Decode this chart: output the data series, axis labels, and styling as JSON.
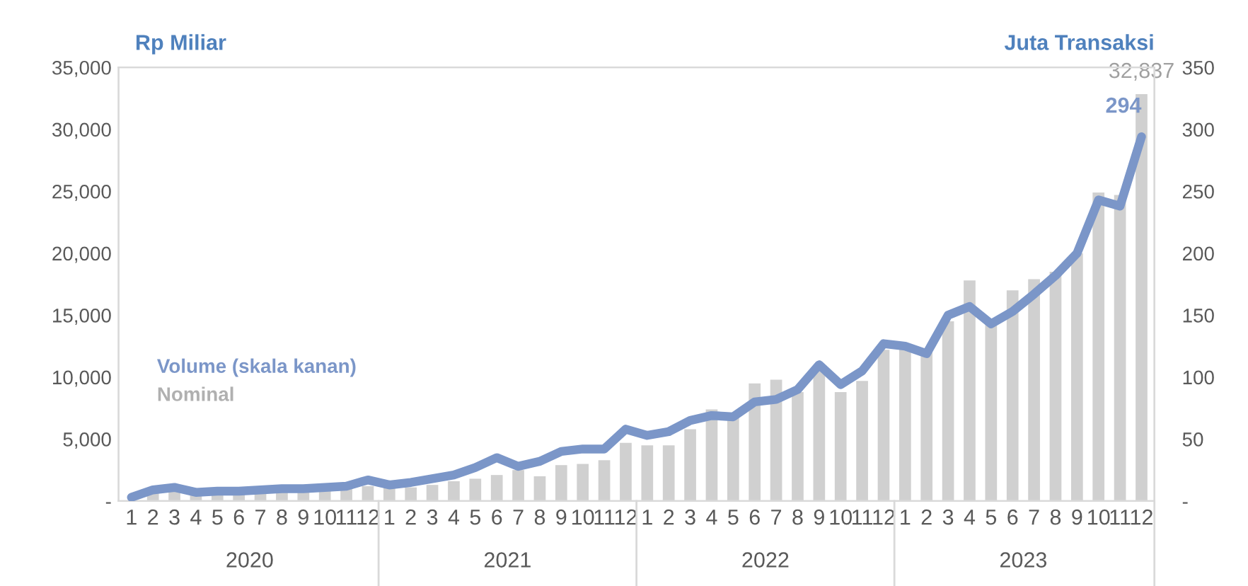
{
  "chart_data": {
    "type": "bar",
    "ylabel": "Rp Miliar",
    "y2label": "Juta Transaksi",
    "categories": [
      "1",
      "2",
      "3",
      "4",
      "5",
      "6",
      "7",
      "8",
      "9",
      "10",
      "11",
      "12",
      "1",
      "2",
      "3",
      "4",
      "5",
      "6",
      "7",
      "8",
      "9",
      "10",
      "11",
      "12",
      "1",
      "2",
      "3",
      "4",
      "5",
      "6",
      "7",
      "8",
      "9",
      "10",
      "11",
      "12",
      "1",
      "2",
      "3",
      "4",
      "5",
      "6",
      "7",
      "8",
      "9",
      "10",
      "11",
      "12"
    ],
    "series": [
      {
        "name": "Nominal",
        "color": "#d0d0d0",
        "values": [
          null,
          700,
          900,
          500,
          600,
          700,
          800,
          900,
          900,
          1000,
          1100,
          1200,
          1200,
          1100,
          1300,
          1600,
          1800,
          2100,
          2500,
          2000,
          2900,
          3000,
          3300,
          4700,
          4500,
          4500,
          5800,
          7400,
          7000,
          9500,
          9800,
          8800,
          10500,
          8800,
          9700,
          12200,
          12300,
          12000,
          14500,
          17800,
          14500,
          17000,
          17900,
          18500,
          20000,
          24900,
          24700,
          32837
        ],
        "value_labels": [
          null,
          null,
          null,
          null,
          null,
          null,
          null,
          null,
          null,
          null,
          null,
          null,
          null,
          null,
          null,
          null,
          null,
          null,
          null,
          null,
          null,
          null,
          null,
          null,
          null,
          null,
          null,
          null,
          null,
          null,
          null,
          null,
          null,
          null,
          null,
          null,
          null,
          null,
          null,
          null,
          null,
          null,
          null,
          null,
          null,
          null,
          null,
          "32,837"
        ]
      },
      {
        "name": "Volume (skala kanan)",
        "type": "line",
        "axis": "y2",
        "color": "#7b96c8",
        "values": [
          3,
          9,
          11,
          7,
          8,
          8,
          9,
          10,
          10,
          11,
          12,
          17,
          13,
          15,
          18,
          21,
          27,
          35,
          28,
          32,
          40,
          42,
          42,
          58,
          53,
          56,
          65,
          69,
          68,
          80,
          82,
          90,
          110,
          94,
          105,
          127,
          125,
          119,
          150,
          157,
          143,
          153,
          167,
          182,
          200,
          243,
          238,
          294
        ],
        "value_labels": [
          null,
          null,
          null,
          null,
          null,
          null,
          null,
          null,
          null,
          null,
          null,
          null,
          null,
          null,
          null,
          null,
          null,
          null,
          null,
          null,
          null,
          null,
          null,
          null,
          null,
          null,
          null,
          null,
          null,
          null,
          null,
          null,
          null,
          null,
          null,
          null,
          null,
          null,
          null,
          null,
          null,
          null,
          null,
          null,
          null,
          null,
          null,
          "294"
        ]
      }
    ],
    "ylim": [
      0,
      35000
    ],
    "yticks": [
      {
        "value": 0,
        "label": "-"
      },
      {
        "value": 5000,
        "label": "5,000"
      },
      {
        "value": 10000,
        "label": "10,000"
      },
      {
        "value": 15000,
        "label": "15,000"
      },
      {
        "value": 20000,
        "label": "20,000"
      },
      {
        "value": 25000,
        "label": "25,000"
      },
      {
        "value": 30000,
        "label": "30,000"
      },
      {
        "value": 35000,
        "label": "35,000"
      }
    ],
    "y2lim": [
      0,
      350
    ],
    "y2ticks": [
      {
        "value": 0,
        "label": "-"
      },
      50,
      100,
      150,
      200,
      250,
      300,
      350
    ],
    "annotations": [
      "2020",
      "2021",
      "2022",
      "2023"
    ],
    "legend": "left",
    "grid": false
  }
}
